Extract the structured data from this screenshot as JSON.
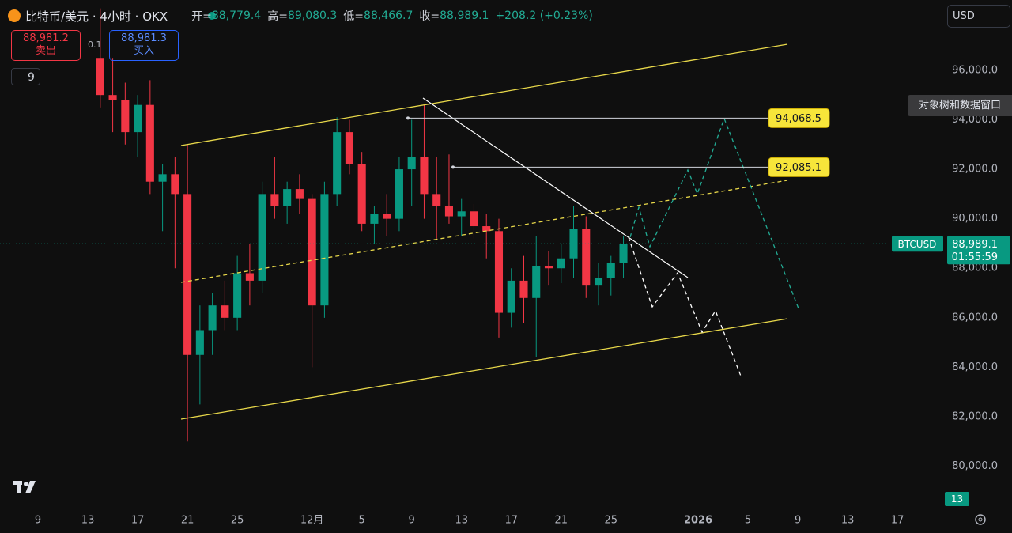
{
  "header": {
    "symbol": "比特币/美元 · 4小时 · OKX",
    "open_label": "开=",
    "open": "88,779.4",
    "high_label": "高=",
    "high": "89,080.3",
    "low_label": "低=",
    "low": "88,466.7",
    "close_label": "收=",
    "close": "88,989.1",
    "change": "+208.2 (+0.23%)"
  },
  "trade": {
    "sell_price": "88,981.2",
    "sell_label": "卖出",
    "quantity": "0.1",
    "buy_price": "88,981.3",
    "buy_label": "买入"
  },
  "indicators_count": "9",
  "currency": "USD",
  "object_tree_button": "对象树和数据窗口",
  "bottom_badge": "13",
  "chart_data": {
    "type": "candlestick",
    "x": [
      5,
      6,
      7,
      8,
      9,
      10,
      11,
      12,
      13,
      14,
      15,
      16,
      17,
      18,
      19,
      20,
      21,
      22,
      23,
      24,
      25,
      26,
      27,
      28,
      29,
      30,
      31,
      32,
      33,
      34,
      35,
      36,
      37,
      38,
      39,
      40,
      41,
      42,
      43,
      44,
      45,
      46,
      47
    ],
    "open": [
      96500,
      95000,
      94800,
      93500,
      94600,
      91500,
      91800,
      91000,
      84500,
      85500,
      86500,
      86000,
      87800,
      87500,
      91000,
      90500,
      91200,
      90800,
      86500,
      91000,
      93500,
      92200,
      89800,
      90200,
      90000,
      92000,
      92500,
      91000,
      90500,
      90100,
      90300,
      89700,
      89500,
      86200,
      87500,
      86800,
      88100,
      88000,
      88400,
      89600,
      87300,
      87600,
      88200
    ],
    "high": [
      98500,
      96500,
      95500,
      95000,
      95600,
      92200,
      92500,
      93000,
      86500,
      87000,
      87500,
      88500,
      89000,
      91500,
      92500,
      91500,
      91800,
      91000,
      91500,
      94100,
      94000,
      92700,
      90500,
      91000,
      92500,
      94000,
      94600,
      92500,
      92600,
      90800,
      90600,
      90200,
      90000,
      88000,
      88500,
      89300,
      88700,
      89000,
      90500,
      90100,
      88200,
      88500,
      89300
    ],
    "low": [
      94500,
      93500,
      93000,
      92500,
      91000,
      89500,
      88000,
      81000,
      82500,
      84500,
      85500,
      85500,
      86500,
      87000,
      90000,
      89800,
      90200,
      84000,
      86000,
      90500,
      91800,
      89500,
      89000,
      89300,
      89500,
      90500,
      90000,
      89200,
      89800,
      89300,
      89200,
      88400,
      85200,
      85600,
      85800,
      84400,
      87300,
      87400,
      87600,
      86800,
      86500,
      86900,
      87600
    ],
    "close": [
      95000,
      94800,
      93500,
      94600,
      91500,
      91800,
      91000,
      84500,
      85500,
      86500,
      86000,
      87800,
      87500,
      91000,
      90500,
      91200,
      90800,
      86500,
      91000,
      93500,
      92200,
      89800,
      90200,
      90000,
      92000,
      92500,
      91000,
      90500,
      90100,
      90300,
      89700,
      89500,
      86200,
      87500,
      86800,
      88100,
      88000,
      88400,
      89600,
      87300,
      87600,
      88200,
      88989.1
    ],
    "up_color": "#089981",
    "down_color": "#f23645",
    "ylim": [
      78230,
      98840
    ],
    "yticks": [
      {
        "value": 80000,
        "label": "80,000.0"
      },
      {
        "value": 82000,
        "label": "82,000.0"
      },
      {
        "value": 84000,
        "label": "84,000.0"
      },
      {
        "value": 86000,
        "label": "86,000.0"
      },
      {
        "value": 88000,
        "label": "88,000.0"
      },
      {
        "value": 90000,
        "label": "90,000.0"
      },
      {
        "value": 92000,
        "label": "92,000.0"
      },
      {
        "value": 94000,
        "label": "94,000.0"
      },
      {
        "value": 96000,
        "label": "96,000.0"
      }
    ],
    "xlim": [
      -3.05,
      72.8
    ],
    "xticks": [
      {
        "value": 0,
        "label": "9"
      },
      {
        "value": 4,
        "label": "13"
      },
      {
        "value": 8,
        "label": "17"
      },
      {
        "value": 12,
        "label": "21"
      },
      {
        "value": 16,
        "label": "25"
      },
      {
        "value": 22,
        "label": "12月"
      },
      {
        "value": 26,
        "label": "5"
      },
      {
        "value": 30,
        "label": "9"
      },
      {
        "value": 34,
        "label": "13"
      },
      {
        "value": 38,
        "label": "17"
      },
      {
        "value": 42,
        "label": "21"
      },
      {
        "value": 46,
        "label": "25"
      },
      {
        "value": 53,
        "label": "2026"
      },
      {
        "value": 57,
        "label": "5"
      },
      {
        "value": 61,
        "label": "9"
      },
      {
        "value": 65,
        "label": "13"
      },
      {
        "value": 69,
        "label": "17"
      }
    ],
    "levels": [
      {
        "value": 94068.5,
        "label": "94,068.5"
      },
      {
        "value": 92085.1,
        "label": "92,085.1"
      }
    ],
    "last_price": {
      "value": 88989.1,
      "label": "88,989.1"
    },
    "symbol_tag": "BTCUSD",
    "countdown": "01:55:59"
  }
}
